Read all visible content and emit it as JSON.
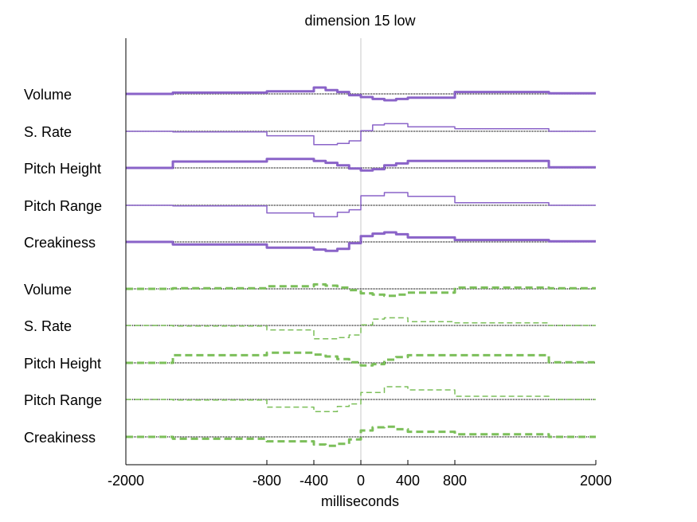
{
  "chart_data": {
    "type": "line",
    "title": "dimension 15 low",
    "xlabel": "milliseconds",
    "ylabel": "",
    "xlim": [
      -2000,
      2000
    ],
    "xticks": [
      -2000,
      -800,
      -400,
      0,
      400,
      800,
      2000
    ],
    "xtick_labels": [
      "-2000",
      "-800",
      "-400",
      "0",
      "400",
      "800",
      "2000"
    ],
    "grid": false,
    "legend": "none",
    "zero_line": true,
    "colors": {
      "purple": "#8a63c8",
      "green": "#7cbf5a",
      "baseline": "#000000",
      "zero": "#c8c8c8"
    },
    "rows": [
      {
        "label": "Volume",
        "color": "purple",
        "style": "thick",
        "steps": [
          [
            -2000,
            -1600,
            0
          ],
          [
            -1600,
            -800,
            0.1
          ],
          [
            -800,
            -400,
            0.2
          ],
          [
            -400,
            -300,
            0.5
          ],
          [
            -300,
            -200,
            0.3
          ],
          [
            -200,
            -100,
            0.15
          ],
          [
            -100,
            0,
            -0.1
          ],
          [
            0,
            100,
            -0.25
          ],
          [
            100,
            200,
            -0.4
          ],
          [
            200,
            300,
            -0.5
          ],
          [
            300,
            400,
            -0.4
          ],
          [
            400,
            800,
            -0.3
          ],
          [
            800,
            1600,
            0.15
          ],
          [
            1600,
            2000,
            0.05
          ]
        ]
      },
      {
        "label": "S. Rate",
        "color": "purple",
        "style": "thin",
        "steps": [
          [
            -2000,
            -1600,
            0
          ],
          [
            -1600,
            -800,
            -0.05
          ],
          [
            -800,
            -400,
            -0.35
          ],
          [
            -400,
            -200,
            -1.05
          ],
          [
            -200,
            -100,
            -0.95
          ],
          [
            -100,
            0,
            -0.75
          ],
          [
            0,
            100,
            0.05
          ],
          [
            100,
            200,
            0.5
          ],
          [
            200,
            400,
            0.6
          ],
          [
            400,
            800,
            0.35
          ],
          [
            800,
            1600,
            0.2
          ],
          [
            1600,
            2000,
            0
          ]
        ]
      },
      {
        "label": "Pitch Height",
        "color": "purple",
        "style": "thick",
        "steps": [
          [
            -2000,
            -1600,
            0
          ],
          [
            -1600,
            -800,
            0.5
          ],
          [
            -800,
            -400,
            0.7
          ],
          [
            -400,
            -300,
            0.55
          ],
          [
            -300,
            -200,
            0.4
          ],
          [
            -200,
            -100,
            0.2
          ],
          [
            -100,
            0,
            -0.05
          ],
          [
            0,
            100,
            -0.2
          ],
          [
            100,
            200,
            -0.1
          ],
          [
            200,
            300,
            0.2
          ],
          [
            300,
            400,
            0.35
          ],
          [
            400,
            800,
            0.55
          ],
          [
            800,
            1600,
            0.55
          ],
          [
            1600,
            2000,
            0.05
          ]
        ]
      },
      {
        "label": "Pitch Range",
        "color": "purple",
        "style": "thin",
        "steps": [
          [
            -2000,
            -1600,
            0
          ],
          [
            -1600,
            -800,
            -0.05
          ],
          [
            -800,
            -400,
            -0.6
          ],
          [
            -400,
            -200,
            -0.9
          ],
          [
            -200,
            -100,
            -0.55
          ],
          [
            -100,
            0,
            -0.35
          ],
          [
            0,
            200,
            0.75
          ],
          [
            200,
            400,
            1.0
          ],
          [
            400,
            800,
            0.7
          ],
          [
            800,
            1600,
            0.2
          ],
          [
            1600,
            2000,
            0
          ]
        ]
      },
      {
        "label": "Creakiness",
        "color": "purple",
        "style": "thick",
        "steps": [
          [
            -2000,
            -1600,
            0
          ],
          [
            -1600,
            -800,
            -0.2
          ],
          [
            -800,
            -400,
            -0.45
          ],
          [
            -400,
            -300,
            -0.6
          ],
          [
            -300,
            -200,
            -0.7
          ],
          [
            -200,
            -100,
            -0.55
          ],
          [
            -100,
            0,
            -0.1
          ],
          [
            0,
            100,
            0.45
          ],
          [
            100,
            200,
            0.65
          ],
          [
            200,
            300,
            0.75
          ],
          [
            300,
            400,
            0.6
          ],
          [
            400,
            800,
            0.35
          ],
          [
            800,
            1600,
            0.15
          ],
          [
            1600,
            2000,
            0.05
          ]
        ]
      },
      {
        "label": "Volume",
        "color": "green",
        "style": "thick-dashed",
        "steps": [
          [
            -2000,
            -1600,
            0
          ],
          [
            -1600,
            -800,
            0.05
          ],
          [
            -800,
            -400,
            0.2
          ],
          [
            -400,
            -300,
            0.35
          ],
          [
            -300,
            -200,
            0.25
          ],
          [
            -200,
            -100,
            0.1
          ],
          [
            -100,
            0,
            -0.1
          ],
          [
            0,
            100,
            -0.35
          ],
          [
            100,
            200,
            -0.45
          ],
          [
            200,
            300,
            -0.55
          ],
          [
            300,
            400,
            -0.45
          ],
          [
            400,
            800,
            -0.3
          ],
          [
            800,
            1600,
            0.1
          ],
          [
            1600,
            2000,
            0.05
          ]
        ]
      },
      {
        "label": "S. Rate",
        "color": "green",
        "style": "thin-dashed",
        "steps": [
          [
            -2000,
            -1600,
            0
          ],
          [
            -1600,
            -800,
            -0.05
          ],
          [
            -800,
            -400,
            -0.35
          ],
          [
            -400,
            -200,
            -1.05
          ],
          [
            -200,
            -100,
            -0.95
          ],
          [
            -100,
            0,
            -0.75
          ],
          [
            0,
            100,
            0.05
          ],
          [
            100,
            200,
            0.5
          ],
          [
            200,
            400,
            0.6
          ],
          [
            400,
            800,
            0.3
          ],
          [
            800,
            1600,
            0.2
          ],
          [
            1600,
            2000,
            0
          ]
        ]
      },
      {
        "label": "Pitch Height",
        "color": "green",
        "style": "thick-dashed",
        "steps": [
          [
            -2000,
            -1600,
            0
          ],
          [
            -1600,
            -800,
            0.6
          ],
          [
            -800,
            -400,
            0.8
          ],
          [
            -400,
            -300,
            0.65
          ],
          [
            -300,
            -200,
            0.5
          ],
          [
            -200,
            -100,
            0.3
          ],
          [
            -100,
            0,
            0.05
          ],
          [
            0,
            100,
            -0.2
          ],
          [
            100,
            200,
            -0.1
          ],
          [
            200,
            300,
            0.25
          ],
          [
            300,
            400,
            0.45
          ],
          [
            400,
            800,
            0.6
          ],
          [
            800,
            1600,
            0.6
          ],
          [
            1600,
            2000,
            0.05
          ]
        ]
      },
      {
        "label": "Pitch Range",
        "color": "green",
        "style": "thin-dashed",
        "steps": [
          [
            -2000,
            -1600,
            0
          ],
          [
            -1600,
            -800,
            -0.05
          ],
          [
            -800,
            -400,
            -0.6
          ],
          [
            -400,
            -200,
            -0.95
          ],
          [
            -200,
            -100,
            -0.55
          ],
          [
            -100,
            0,
            -0.35
          ],
          [
            0,
            200,
            0.55
          ],
          [
            200,
            400,
            1.0
          ],
          [
            400,
            800,
            0.75
          ],
          [
            800,
            1600,
            0.25
          ],
          [
            1600,
            2000,
            0
          ]
        ]
      },
      {
        "label": "Creakiness",
        "color": "green",
        "style": "thick-dashed",
        "steps": [
          [
            -2000,
            -1600,
            0
          ],
          [
            -1600,
            -800,
            -0.15
          ],
          [
            -800,
            -400,
            -0.35
          ],
          [
            -400,
            -300,
            -0.6
          ],
          [
            -300,
            -200,
            -0.7
          ],
          [
            -200,
            -100,
            -0.55
          ],
          [
            -100,
            0,
            -0.2
          ],
          [
            0,
            100,
            0.5
          ],
          [
            100,
            200,
            0.75
          ],
          [
            200,
            300,
            0.8
          ],
          [
            300,
            400,
            0.6
          ],
          [
            400,
            800,
            0.4
          ],
          [
            800,
            1600,
            0.2
          ],
          [
            1600,
            2000,
            0
          ]
        ]
      }
    ]
  }
}
